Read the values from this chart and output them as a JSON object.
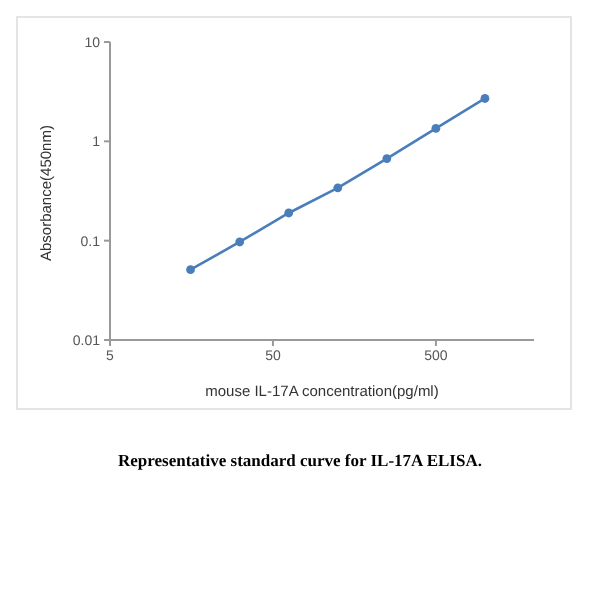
{
  "chart_data": {
    "type": "line",
    "title": "Representative standard curve for IL-17A ELISA.",
    "xlabel": "mouse IL-17A concentration(pg/ml)",
    "ylabel": "Absorbance(450nm)",
    "x": [
      15.6,
      31.25,
      62.5,
      125,
      250,
      500,
      1000
    ],
    "series": [
      {
        "color": "#4a7ebb",
        "values": [
          0.051,
          0.097,
          0.19,
          0.34,
          0.67,
          1.35,
          2.7
        ]
      }
    ],
    "log": "xy",
    "xlim": [
      5,
      2000
    ],
    "xticks": [
      5,
      50,
      500
    ],
    "ylim": [
      0.01,
      10
    ],
    "yticks": [
      0.01,
      0.1,
      1,
      10
    ],
    "marker": "circle",
    "line_style": "solid"
  }
}
